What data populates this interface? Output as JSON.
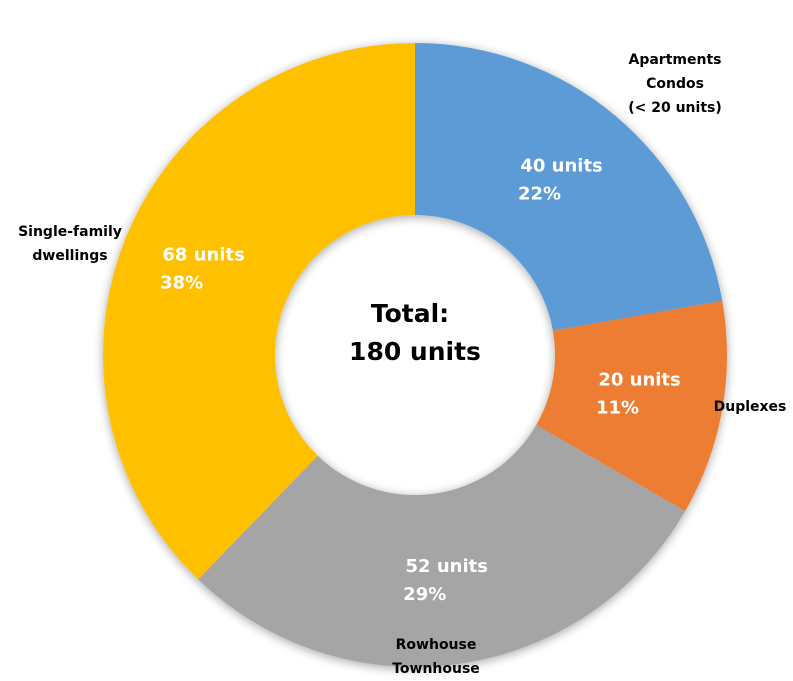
{
  "chart_data": {
    "type": "donut",
    "categories": [
      [
        "Apartments",
        "Condos",
        "(< 20 units)"
      ],
      [
        "Duplexes"
      ],
      [
        "Rowhouse",
        "Townhouse"
      ],
      [
        "Single-family",
        "dwellings"
      ]
    ],
    "values": [
      40,
      20,
      52,
      68
    ],
    "value_labels": [
      "40 units",
      "20 units",
      "52 units",
      "68 units"
    ],
    "percent_labels": [
      "22%",
      "11%",
      "29%",
      "38%"
    ],
    "colors": [
      "#5b9bd5",
      "#ed7d31",
      "#a5a5a5",
      "#ffc000"
    ],
    "center_label": [
      "Total:",
      "180 units"
    ]
  }
}
